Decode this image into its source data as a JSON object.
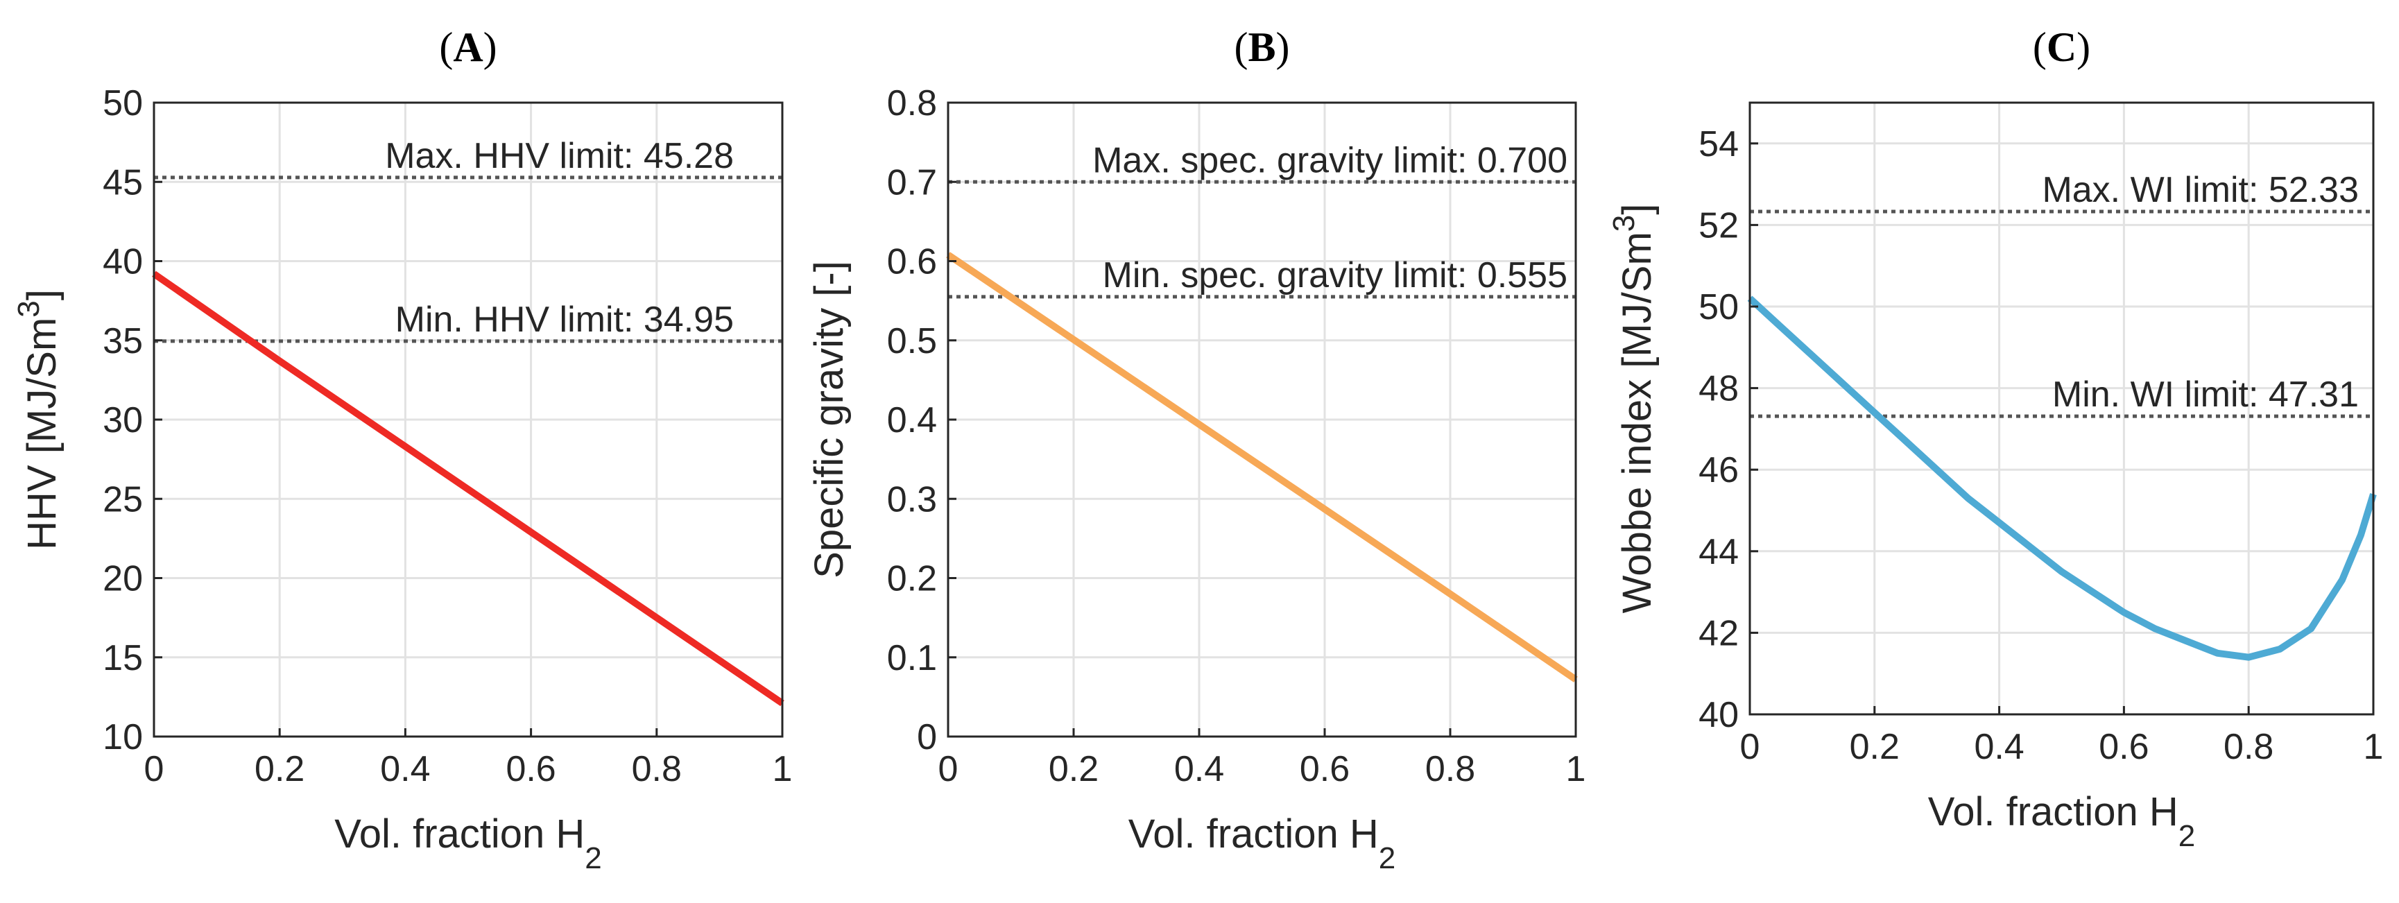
{
  "chart_data": [
    {
      "type": "line",
      "panel_label": "(A)",
      "xlabel_main": "Vol. fraction H",
      "xlabel_sub": "2",
      "ylabel_main": "HHV [MJ/Sm",
      "ylabel_sup": "3",
      "ylabel_end": "]",
      "xlim": [
        0,
        1
      ],
      "ylim": [
        10,
        50
      ],
      "xticks": [
        0,
        0.2,
        0.4,
        0.6,
        0.8,
        1
      ],
      "xtick_labels": [
        "0",
        "0.2",
        "0.4",
        "0.6",
        "0.8",
        "1"
      ],
      "yticks": [
        10,
        15,
        20,
        25,
        30,
        35,
        40,
        45,
        50
      ],
      "ytick_labels": [
        "10",
        "15",
        "20",
        "25",
        "30",
        "35",
        "40",
        "45",
        "50"
      ],
      "grid": true,
      "series": [
        {
          "color": "#ee2a24",
          "x": [
            0,
            0.2,
            0.4,
            0.6,
            0.8,
            1
          ],
          "y": [
            39.2,
            33.7,
            28.3,
            22.9,
            17.5,
            12.1
          ]
        }
      ],
      "limits": [
        {
          "value": 45.28,
          "label": "Max. HHV limit: 45.28"
        },
        {
          "value": 34.95,
          "label": "Min. HHV limit: 34.95"
        }
      ]
    },
    {
      "type": "line",
      "panel_label": "(B)",
      "xlabel_main": "Vol. fraction H",
      "xlabel_sub": "2",
      "ylabel_main": "Specific gravity [-]",
      "ylabel_sup": "",
      "ylabel_end": "",
      "xlim": [
        0,
        1
      ],
      "ylim": [
        0,
        0.8
      ],
      "xticks": [
        0,
        0.2,
        0.4,
        0.6,
        0.8,
        1
      ],
      "xtick_labels": [
        "0",
        "0.2",
        "0.4",
        "0.6",
        "0.8",
        "1"
      ],
      "yticks": [
        0,
        0.1,
        0.2,
        0.3,
        0.4,
        0.5,
        0.6,
        0.7,
        0.8
      ],
      "ytick_labels": [
        "0",
        "0.1",
        "0.2",
        "0.3",
        "0.4",
        "0.5",
        "0.6",
        "0.7",
        "0.8"
      ],
      "grid": true,
      "series": [
        {
          "color": "#f7a856",
          "x": [
            0,
            0.2,
            0.4,
            0.6,
            0.8,
            1
          ],
          "y": [
            0.608,
            0.501,
            0.394,
            0.287,
            0.18,
            0.072
          ]
        }
      ],
      "limits": [
        {
          "value": 0.7,
          "label": "Max. spec. gravity limit: 0.700"
        },
        {
          "value": 0.555,
          "label": "Min. spec. gravity limit: 0.555"
        }
      ]
    },
    {
      "type": "line",
      "panel_label": "(C)",
      "xlabel_main": "Vol. fraction H",
      "xlabel_sub": "2",
      "ylabel_main": "Wobbe index [MJ/Sm",
      "ylabel_sup": "3",
      "ylabel_end": "]",
      "xlim": [
        0,
        1
      ],
      "ylim": [
        40,
        55
      ],
      "xticks": [
        0,
        0.2,
        0.4,
        0.6,
        0.8,
        1
      ],
      "xtick_labels": [
        "0",
        "0.2",
        "0.4",
        "0.6",
        "0.8",
        "1"
      ],
      "yticks": [
        40,
        42,
        44,
        46,
        48,
        50,
        52,
        54
      ],
      "ytick_labels": [
        "40",
        "42",
        "44",
        "46",
        "48",
        "50",
        "52",
        "54"
      ],
      "grid": true,
      "series": [
        {
          "color": "#4eaad4",
          "x": [
            0,
            0.05,
            0.1,
            0.15,
            0.2,
            0.25,
            0.3,
            0.35,
            0.4,
            0.45,
            0.5,
            0.55,
            0.6,
            0.65,
            0.7,
            0.75,
            0.8,
            0.85,
            0.9,
            0.95,
            0.98,
            1
          ],
          "y": [
            50.2,
            49.5,
            48.8,
            48.1,
            47.4,
            46.7,
            46.0,
            45.3,
            44.7,
            44.1,
            43.5,
            43.0,
            42.5,
            42.1,
            41.8,
            41.5,
            41.4,
            41.6,
            42.1,
            43.3,
            44.4,
            45.4
          ]
        }
      ],
      "limits": [
        {
          "value": 52.33,
          "label": "Max. WI limit: 52.33"
        },
        {
          "value": 47.31,
          "label": "Min. WI limit: 47.31"
        }
      ]
    }
  ]
}
